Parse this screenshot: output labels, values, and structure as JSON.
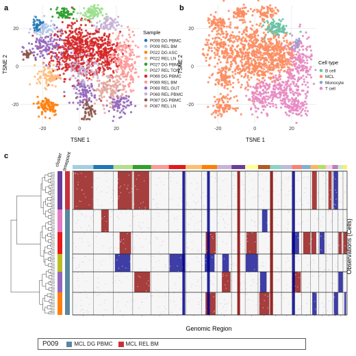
{
  "panels": [
    {
      "letter": "a"
    },
    {
      "letter": "b"
    },
    {
      "letter": "c"
    }
  ],
  "chart_data": [
    {
      "type": "scatter",
      "panel": "a",
      "xlabel": "TSNE 1",
      "ylabel": "TSNE 2",
      "xlim": [
        -32,
        33
      ],
      "ylim": [
        -30,
        32
      ],
      "xticks": [
        -20,
        0,
        20
      ],
      "yticks": [
        -20,
        0,
        20
      ],
      "grid": true,
      "legend_title": "Sample",
      "legend_position": "right",
      "series": [
        {
          "name": "P009 DG PBMC",
          "color": "#1f77b4"
        },
        {
          "name": "P009 REL BM",
          "color": "#aec7e8"
        },
        {
          "name": "P022 DG ASC",
          "color": "#ff7f0e"
        },
        {
          "name": "P022 REL LN",
          "color": "#ffbb78"
        },
        {
          "name": "P027 DG PBMC",
          "color": "#2ca02c"
        },
        {
          "name": "P027 REL TON",
          "color": "#98df8a"
        },
        {
          "name": "P069 DG PBMC",
          "color": "#d62728"
        },
        {
          "name": "P069 REL BM",
          "color": "#ff9896"
        },
        {
          "name": "P069 REL GUT",
          "color": "#9467bd"
        },
        {
          "name": "P069 REL PBMC",
          "color": "#c5b0d5"
        },
        {
          "name": "P087 DG PBMC",
          "color": "#8c564b"
        },
        {
          "name": "P087 REL LN",
          "color": "#e3a9a0"
        }
      ]
    },
    {
      "type": "scatter",
      "panel": "b",
      "xlabel": "TSNE 1",
      "ylabel": "TSNE 2",
      "xlim": [
        -32,
        33
      ],
      "ylim": [
        -30,
        32
      ],
      "xticks": [
        -20,
        0,
        20
      ],
      "yticks": [
        -20,
        0,
        20
      ],
      "grid": true,
      "legend_title": "Cell type",
      "legend_position": "right",
      "series": [
        {
          "name": "B cell",
          "color": "#66c2a5"
        },
        {
          "name": "MCL",
          "color": "#fc8d62"
        },
        {
          "name": "Monocyte",
          "color": "#8da0cb"
        },
        {
          "name": "T cell",
          "color": "#e78ac3"
        }
      ]
    },
    {
      "type": "heatmap",
      "panel": "c",
      "xlabel": "Genomic Region",
      "ylabel": "Observations (Cells)",
      "annotation_labels": [
        "cluster",
        "timepoint"
      ],
      "chromosome_colors": [
        "#a6cee3",
        "#1f78b4",
        "#b2df8a",
        "#33a02c",
        "#fb9a99",
        "#e31a1c",
        "#fdbf6f",
        "#ff7f00",
        "#cab2d6",
        "#6a3d9a",
        "#ffff99",
        "#b15928",
        "#8dd3c7",
        "#bebada",
        "#fb8072",
        "#80b1d3",
        "#fdb462",
        "#b3de69",
        "#fccde5",
        "#bc80bd",
        "#ccebc5",
        "#ffed6f"
      ],
      "cluster_colors": [
        "#6a3d9a",
        "#e377c2",
        "#e41a1c",
        "#bcbd22",
        "#9467bd",
        "#ff7f0e",
        "#17becf",
        "#2ca02c",
        "#1f77b4"
      ],
      "gain_color": "#8b0000",
      "loss_color": "#00008b"
    }
  ],
  "bottom_legend": {
    "patient": "P009",
    "items": [
      {
        "label": "MCL DG PBMC",
        "color": "#5a87a0"
      },
      {
        "label": "MCL REL BM",
        "color": "#c7323a"
      }
    ]
  }
}
